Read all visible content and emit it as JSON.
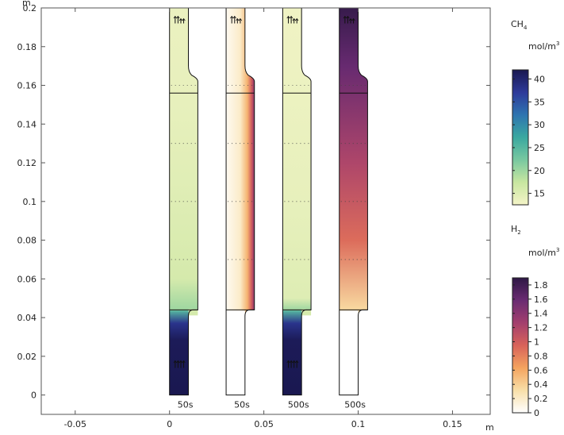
{
  "chart_data": {
    "type": "heatmap",
    "x_unit": "m",
    "y_unit": "m",
    "xlim": [
      -0.068,
      0.17
    ],
    "ylim": [
      -0.01,
      0.2
    ],
    "x_ticks": [
      -0.05,
      0,
      0.05,
      0.1,
      0.15
    ],
    "x_tick_labels": [
      "-0.05",
      "0",
      "0.05",
      "0.1",
      "0.15"
    ],
    "y_ticks": [
      0,
      0.02,
      0.04,
      0.06,
      0.08,
      0.1,
      0.12,
      0.14,
      0.16,
      0.18,
      0.2
    ],
    "y_tick_labels": [
      "0",
      "0.02",
      "0.04",
      "0.06",
      "0.08",
      "0.1",
      "0.12",
      "0.14",
      "0.16",
      "0.18",
      "0.2"
    ],
    "panels": [
      {
        "label": "50s",
        "species": "CH4",
        "x0": 0,
        "x1": 0.01
      },
      {
        "label": "50s",
        "species": "H2",
        "x0": 0.03,
        "x1": 0.04
      },
      {
        "label": "500s",
        "species": "CH4",
        "x0": 0.06,
        "x1": 0.07
      },
      {
        "label": "500s",
        "species": "H2",
        "x0": 0.09,
        "x1": 0.1
      }
    ],
    "reactor": {
      "lower_wide_y": 0.044,
      "upper_wide_y": 0.156,
      "neck_y": 0.162,
      "wide_extra_x": 0.005
    },
    "colorbars": [
      {
        "species_base": "CH",
        "species_sub": "4",
        "unit_base": "mol/m",
        "unit_sup": "3",
        "min": 12.5,
        "max": 42,
        "ticks": [
          15,
          20,
          25,
          30,
          35,
          40
        ],
        "tick_labels": [
          "15",
          "20",
          "25",
          "30",
          "35",
          "40"
        ],
        "colormap": [
          "#f4f4c8",
          "#c8e6a0",
          "#78c8a0",
          "#3aa8a0",
          "#2e74b0",
          "#2e3a9a",
          "#1a1850"
        ]
      },
      {
        "species_base": "H",
        "species_sub": "2",
        "unit_base": "mol/m",
        "unit_sup": "3",
        "min": 0,
        "max": 1.9,
        "ticks": [
          0,
          0.2,
          0.4,
          0.6,
          0.8,
          1,
          1.2,
          1.4,
          1.6,
          1.8
        ],
        "tick_labels": [
          "0",
          "0.2",
          "0.4",
          "0.6",
          "0.8",
          "1",
          "1.2",
          "1.4",
          "1.6",
          "1.8"
        ],
        "colormap": [
          "#ffffff",
          "#f8dfa8",
          "#f4a35e",
          "#d8625a",
          "#a33f6e",
          "#6a2b72",
          "#2e1845"
        ]
      }
    ]
  }
}
